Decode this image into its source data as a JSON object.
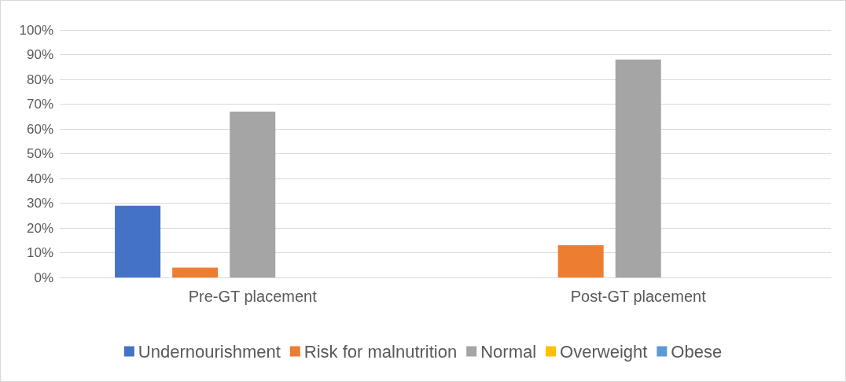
{
  "chart_data": {
    "type": "bar",
    "categories": [
      "Pre-GT placement",
      "Post-GT placement"
    ],
    "series": [
      {
        "name": "Undernourishment",
        "color": "#4472c4",
        "values": [
          29,
          0
        ]
      },
      {
        "name": "Risk for malnutrition",
        "color": "#ed7d31",
        "values": [
          4,
          13
        ]
      },
      {
        "name": "Normal",
        "color": "#a5a5a5",
        "values": [
          67,
          88
        ]
      },
      {
        "name": "Overweight",
        "color": "#ffc000",
        "values": [
          0,
          0
        ]
      },
      {
        "name": "Obese",
        "color": "#5b9bd5",
        "values": [
          0,
          0
        ]
      }
    ],
    "ylim": [
      0,
      100
    ],
    "yticks": [
      {
        "value": 0,
        "label": "0%"
      },
      {
        "value": 10,
        "label": "10%"
      },
      {
        "value": 20,
        "label": "20%"
      },
      {
        "value": 30,
        "label": "30%"
      },
      {
        "value": 40,
        "label": "40%"
      },
      {
        "value": 50,
        "label": "50%"
      },
      {
        "value": 60,
        "label": "60%"
      },
      {
        "value": 70,
        "label": "70%"
      },
      {
        "value": 80,
        "label": "80%"
      },
      {
        "value": 90,
        "label": "90%"
      },
      {
        "value": 100,
        "label": "100%"
      }
    ],
    "grid": "y",
    "legend": "bottom"
  }
}
